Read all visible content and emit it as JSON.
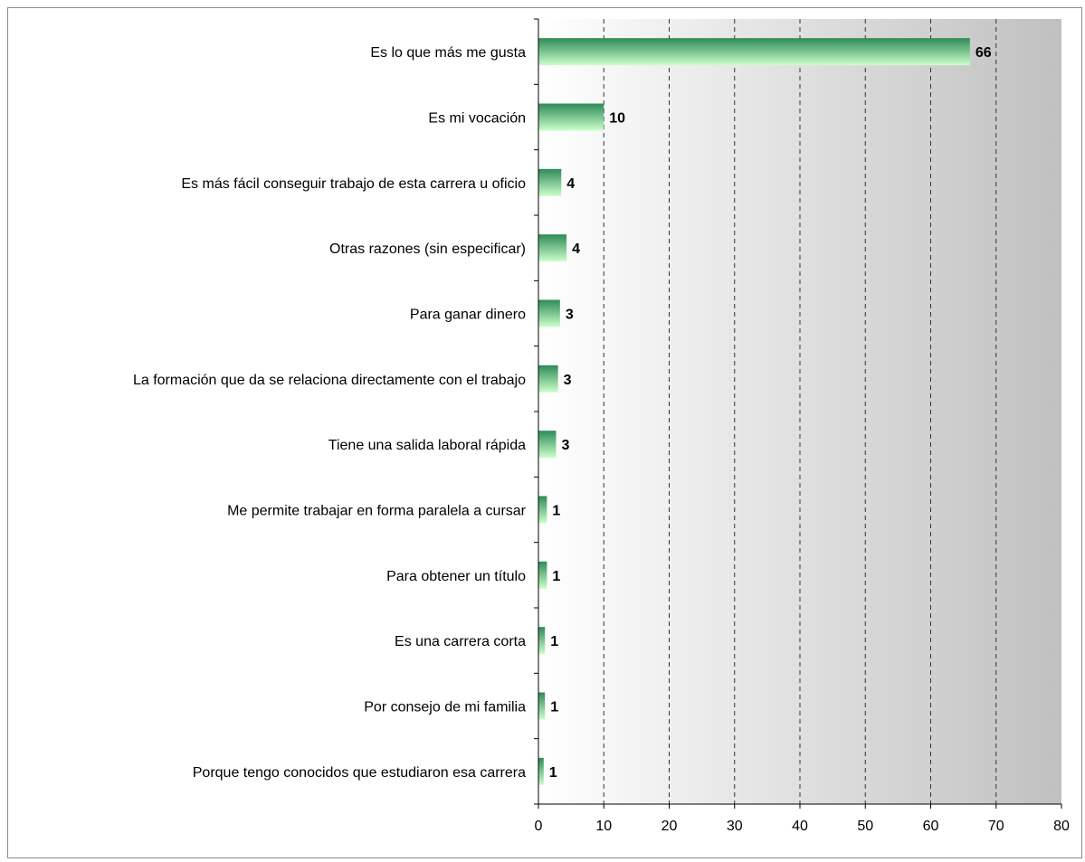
{
  "chart_data": {
    "type": "bar",
    "orientation": "horizontal",
    "title": "",
    "xlabel": "",
    "ylabel": "",
    "xlim": [
      0,
      80
    ],
    "x_ticks": [
      0,
      10,
      20,
      30,
      40,
      50,
      60,
      70,
      80
    ],
    "grid": "vertical dashed",
    "legend": "none",
    "colors": {
      "bar_top": "#2e8b57",
      "bar_bottom": "#ccffcc",
      "background_start": "#ffffff",
      "background_end": "#c0c0c0",
      "grid": "#333333"
    },
    "categories": [
      "Es lo que más me gusta",
      "Es mi vocación",
      "Es más fácil conseguir trabajo de esta carrera u oficio",
      "Otras razones (sin especificar)",
      "Para ganar dinero",
      "La formación que da se relaciona directamente con el trabajo",
      "Tiene una salida laboral rápida",
      "Me permite trabajar en forma paralela a cursar",
      "Para obtener un título",
      "Es una carrera corta",
      "Por consejo de mi familia",
      "Porque tengo conocidos que estudiaron esa carrera"
    ],
    "values": [
      66,
      10,
      3.5,
      4.3,
      3.3,
      3,
      2.7,
      1.3,
      1.3,
      1,
      1,
      0.8
    ],
    "data_labels": [
      "66",
      "10",
      "4",
      "4",
      "3",
      "3",
      "3",
      "1",
      "1",
      "1",
      "1",
      "1"
    ]
  }
}
